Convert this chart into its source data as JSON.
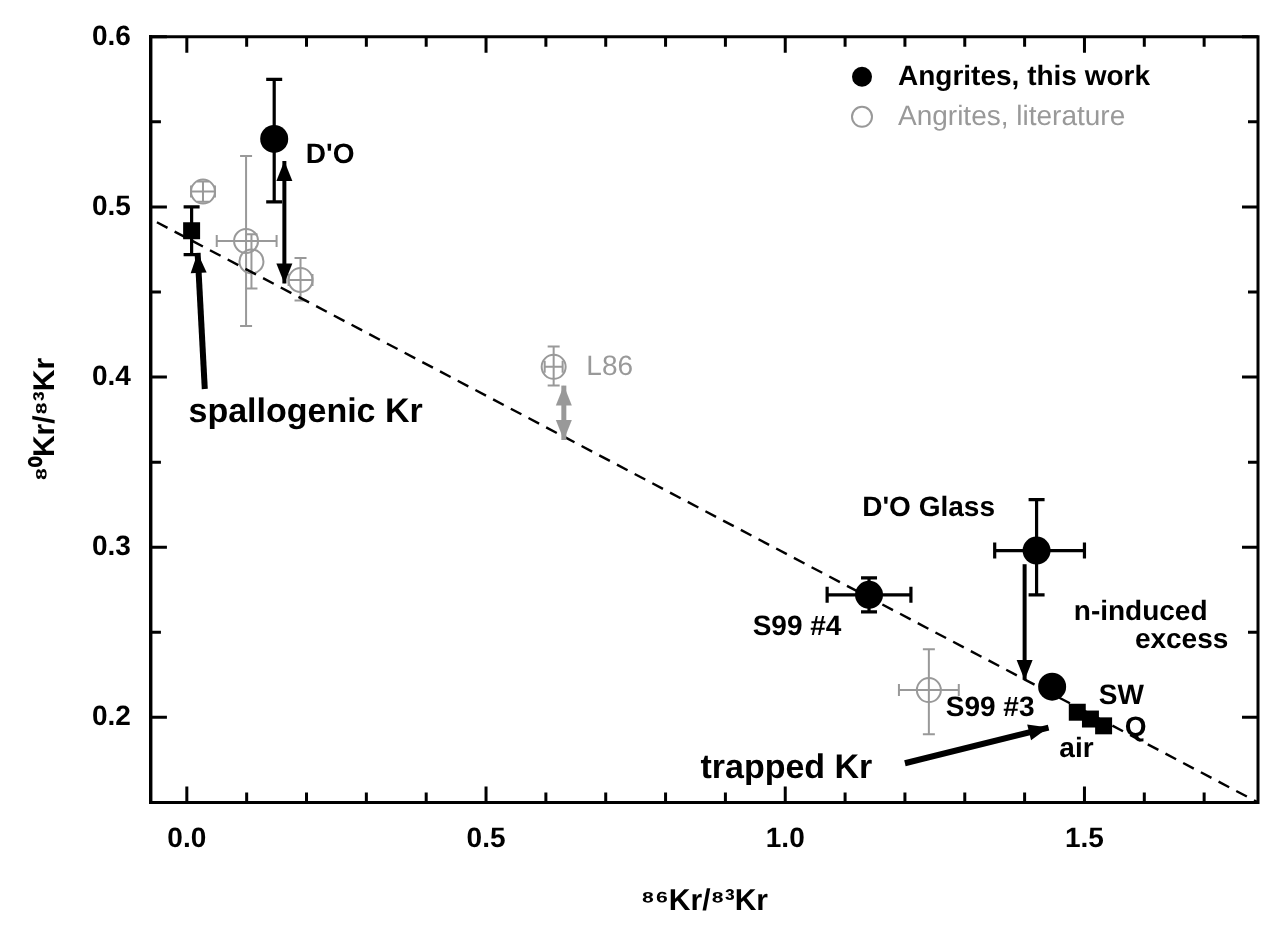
{
  "chart_data": {
    "type": "scatter",
    "xlabel": "⁸⁶Kr/⁸³Kr",
    "ylabel": "⁸⁰Kr/⁸³Kr",
    "xlim": [
      -0.06,
      1.79
    ],
    "ylim": [
      0.15,
      0.6
    ],
    "xticks": [
      {
        "value": 0,
        "label": "0.0"
      },
      {
        "value": 0.1,
        "label": null
      },
      {
        "value": 0.2,
        "label": null
      },
      {
        "value": 0.3,
        "label": null
      },
      {
        "value": 0.4,
        "label": null
      },
      {
        "value": 0.5,
        "label": "0.5"
      },
      {
        "value": 0.6,
        "label": null
      },
      {
        "value": 0.7,
        "label": null
      },
      {
        "value": 0.8,
        "label": null
      },
      {
        "value": 0.9,
        "label": null
      },
      {
        "value": 1,
        "label": "1.0"
      },
      {
        "value": 1.1,
        "label": null
      },
      {
        "value": 1.2,
        "label": null
      },
      {
        "value": 1.3,
        "label": null
      },
      {
        "value": 1.4,
        "label": null
      },
      {
        "value": 1.5,
        "label": "1.5"
      },
      {
        "value": 1.6,
        "label": null
      },
      {
        "value": 1.7,
        "label": null
      }
    ],
    "yticks": [
      {
        "value": 0.2,
        "label": "0.2"
      },
      {
        "value": 0.25,
        "label": null
      },
      {
        "value": 0.3,
        "label": "0.3"
      },
      {
        "value": 0.35,
        "label": null
      },
      {
        "value": 0.4,
        "label": "0.4"
      },
      {
        "value": 0.45,
        "label": null
      },
      {
        "value": 0.5,
        "label": "0.5"
      },
      {
        "value": 0.55,
        "label": null
      },
      {
        "value": 0.6,
        "label": "0.6"
      }
    ],
    "grid": false,
    "legend": "top right",
    "series": [
      {
        "type": "line",
        "color": "#000000",
        "marker": "none",
        "line_style": "dashed",
        "x": [
          -0.05,
          1.79
        ],
        "values": [
          0.491,
          0.15
        ]
      },
      {
        "name": "Angrites, this work",
        "color": "#000000",
        "marker": "circle",
        "x": [
          0.146,
          1.42,
          1.14,
          1.446
        ],
        "values": [
          0.54,
          0.298,
          0.272,
          0.218
        ],
        "errors": [
          [
            0.503,
            0.575
          ],
          [
            0.272,
            0.328
          ],
          0.01,
          null
        ],
        "xerrors": [
          null,
          [
            1.35,
            1.5
          ],
          [
            1.07,
            1.21
          ],
          null
        ]
      },
      {
        "name": "Angrites, literature",
        "color": "#999999",
        "marker": "circle",
        "x": [
          0.027,
          0.099,
          0.108,
          0.19,
          0.613,
          1.24
        ],
        "values": [
          0.509,
          0.48,
          0.468,
          0.457,
          0.406,
          0.216
        ],
        "errors": [
          0.006,
          [
            0.43,
            0.53
          ],
          [
            0.452,
            0.484
          ],
          [
            0.445,
            0.47
          ],
          [
            0.395,
            0.418
          ],
          [
            0.19,
            0.24
          ]
        ],
        "xerrors": [
          0.02,
          [
            0.05,
            0.15
          ],
          null,
          0.02,
          0.015,
          [
            1.19,
            1.29
          ]
        ]
      },
      {
        "color": "#000000",
        "marker": "square",
        "x": [
          0.008,
          1.488,
          1.51,
          1.532
        ],
        "values": [
          0.486,
          0.203,
          0.199,
          0.195
        ],
        "errors": [
          [
            0.472,
            0.5
          ],
          null,
          null,
          null
        ]
      }
    ],
    "annotations": [
      {
        "text": "D'O",
        "x": 0.146,
        "y": 0.54
      },
      {
        "text": "L86",
        "x": 0.613,
        "y": 0.406
      },
      {
        "text": "spallogenic Kr",
        "x": 0.018,
        "y": 0.473
      },
      {
        "text": "D'O Glass",
        "x": 1.42,
        "y": 0.298
      },
      {
        "text": "S99 #4",
        "x": 1.14,
        "y": 0.272
      },
      "n-induced",
      "excess",
      {
        "text": "S99 #3",
        "x": 1.446,
        "y": 0.218
      },
      {
        "text": "SW",
        "x": 1.488,
        "y": 0.203
      },
      {
        "text": "Q",
        "x": 1.532,
        "y": 0.195
      },
      {
        "text": "air",
        "x": 1.51,
        "y": 0.199
      },
      "trapped Kr"
    ]
  }
}
